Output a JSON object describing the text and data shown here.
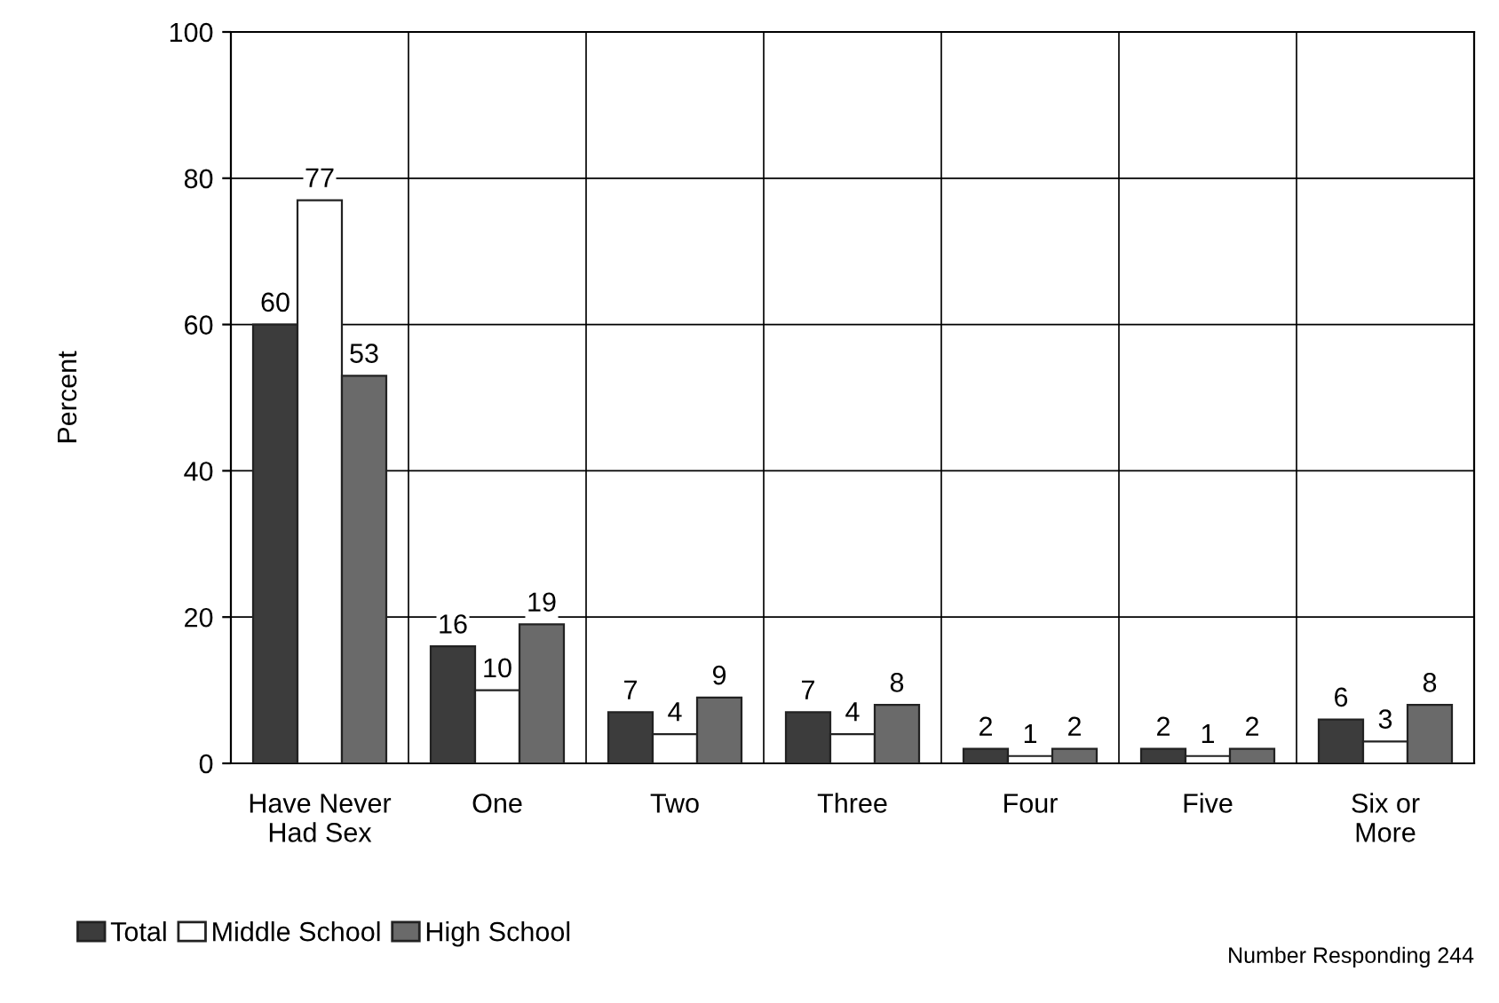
{
  "chart_data": {
    "type": "bar",
    "ylabel": "Percent",
    "categories": [
      "Have Never\nHad Sex",
      "One",
      "Two",
      "Three",
      "Four",
      "Five",
      "Six or\nMore"
    ],
    "series": [
      {
        "name": "Total",
        "color": "#3c3c3c",
        "values": [
          60,
          16,
          7,
          7,
          2,
          2,
          6
        ]
      },
      {
        "name": "Middle School",
        "color": "#ffffff",
        "values": [
          77,
          10,
          4,
          4,
          1,
          1,
          3
        ]
      },
      {
        "name": "High School",
        "color": "#6a6a6a",
        "values": [
          53,
          19,
          9,
          8,
          2,
          2,
          8
        ]
      }
    ],
    "ylim": [
      0,
      100
    ],
    "yticks": [
      0,
      20,
      40,
      60,
      80,
      100
    ],
    "grid": true,
    "data_labels": true,
    "legend": "bottom left",
    "annotations": [
      "Number Responding 244"
    ]
  }
}
